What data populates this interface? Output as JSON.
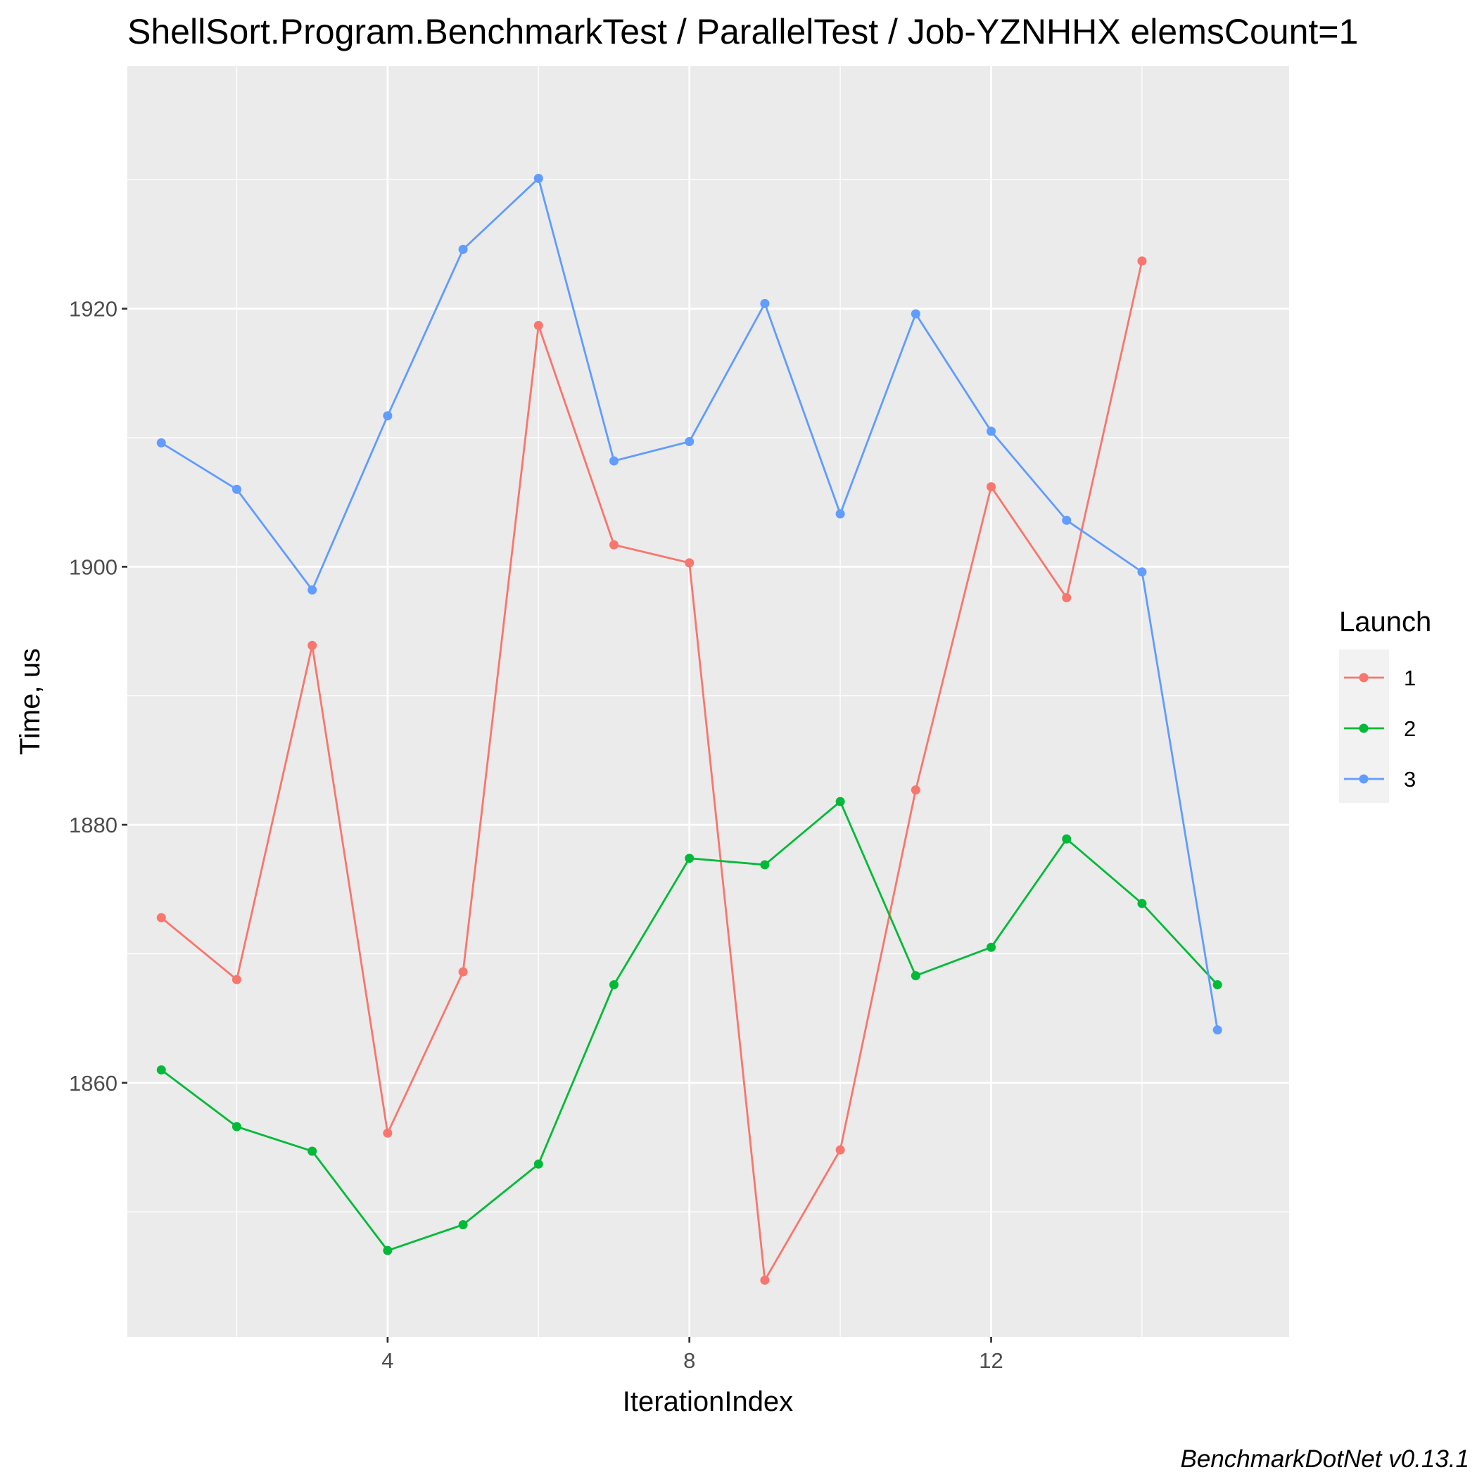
{
  "chart_data": {
    "type": "line",
    "title": "ShellSort.Program.BenchmarkTest / ParallelTest / Job-YZNHHX elemsCount=1",
    "xlabel": "IterationIndex",
    "ylabel": "Time, us",
    "caption": "BenchmarkDotNet v0.13.1",
    "xlim": [
      0.55,
      15.95
    ],
    "ylim": [
      1840.3,
      1938.8
    ],
    "x_ticks": [
      4,
      8,
      12
    ],
    "y_ticks": [
      1860,
      1880,
      1900,
      1920
    ],
    "grid": true,
    "legend": {
      "title": "Launch",
      "position": "right"
    },
    "x": [
      1,
      2,
      3,
      4,
      5,
      6,
      7,
      8,
      9,
      10,
      11,
      12,
      13,
      14,
      15
    ],
    "series": [
      {
        "name": "1",
        "color": "#F8766D",
        "values": [
          1872.8,
          1868.0,
          1893.9,
          1856.1,
          1868.6,
          1918.7,
          1901.7,
          1900.3,
          1844.7,
          1854.8,
          1882.7,
          1906.2,
          1897.6,
          1923.7,
          null
        ]
      },
      {
        "name": "2",
        "color": "#00BA38",
        "values": [
          1861.0,
          1856.6,
          1854.7,
          1847.0,
          1849.0,
          1853.7,
          1867.6,
          1877.4,
          1876.9,
          1881.8,
          1868.3,
          1870.5,
          1878.9,
          1873.9,
          1867.6
        ]
      },
      {
        "name": "3",
        "color": "#619CFF",
        "values": [
          1909.6,
          1906.0,
          1898.2,
          1911.7,
          1924.6,
          1930.1,
          1908.2,
          1909.7,
          1920.4,
          1904.1,
          1919.6,
          1910.5,
          1903.6,
          1899.6,
          1864.1
        ]
      }
    ]
  }
}
